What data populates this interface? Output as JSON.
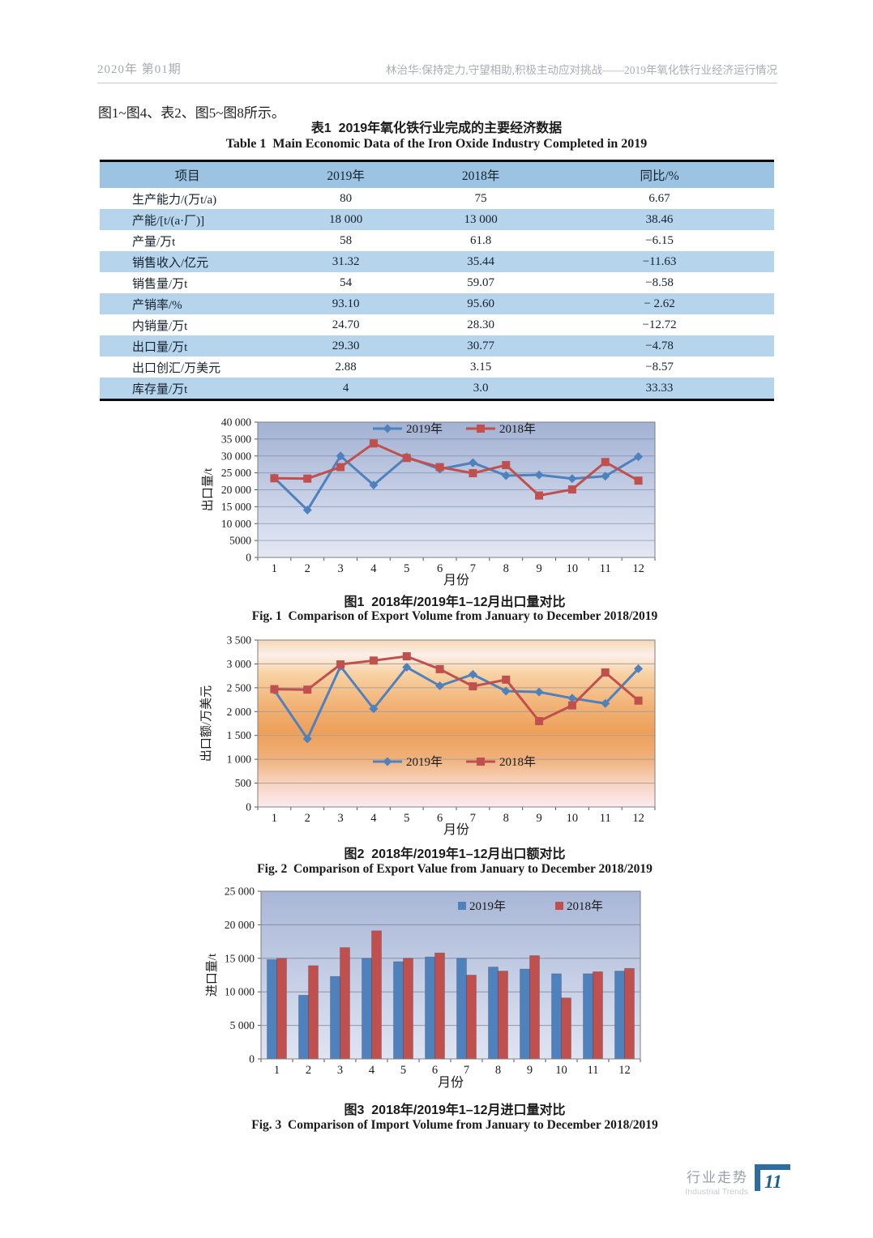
{
  "page": {
    "header": {
      "issue": "2020年 第01期",
      "running_title": "林治华:保持定力,守望相助,积极主动应对挑战——2019年氧化铁行业经济运行情况"
    },
    "intro_text": "图1~图4、表2、图5~图8所示。",
    "footer": {
      "section_zh": "行业走势",
      "section_en": "Industrial Trends",
      "page_number": "11"
    }
  },
  "colors": {
    "series_2019": "#4f81bd",
    "series_2018": "#c0504d",
    "table_header_bg": "#9cc4e2",
    "table_row_alt_bg": "#b6d4ec",
    "footer_accent": "#2e6d9e"
  },
  "table1": {
    "title_zh": "表1  2019年氧化铁行业完成的主要经济数据",
    "title_en": "Table 1  Main Economic Data of the Iron Oxide Industry Completed in 2019",
    "columns": [
      "项目",
      "2019年",
      "2018年",
      "同比/%"
    ],
    "rows": [
      [
        "生产能力/(万t/a)",
        "80",
        "75",
        "6.67"
      ],
      [
        "产能/[t/(a·厂)]",
        "18 000",
        "13 000",
        "38.46"
      ],
      [
        "产量/万t",
        "58",
        "61.8",
        "−6.15"
      ],
      [
        "销售收入/亿元",
        "31.32",
        "35.44",
        "−11.63"
      ],
      [
        "销售量/万t",
        "54",
        "59.07",
        "−8.58"
      ],
      [
        "产销率/%",
        "93.10",
        "95.60",
        "− 2.62"
      ],
      [
        "内销量/万t",
        "24.70",
        "28.30",
        "−12.72"
      ],
      [
        "出口量/万t",
        "29.30",
        "30.77",
        "−4.78"
      ],
      [
        "出口创汇/万美元",
        "2.88",
        "3.15",
        "−8.57"
      ],
      [
        "库存量/万t",
        "4",
        "3.0",
        "33.33"
      ]
    ]
  },
  "figures": [
    {
      "id": "fig1",
      "caption_zh": "图1  2018年/2019年1–12月出口量对比",
      "caption_en": "Fig. 1  Comparison of Export Volume from January to December 2018/2019",
      "chart_data": {
        "type": "line",
        "categories": [
          "1",
          "2",
          "3",
          "4",
          "5",
          "6",
          "7",
          "8",
          "9",
          "10",
          "11",
          "12"
        ],
        "xlabel": "月份",
        "ylabel": "出口量/t",
        "ylim": [
          0,
          40000
        ],
        "ystep": 5000,
        "ytick_labels": [
          "40 000",
          "35 000",
          "30 000",
          "25 000",
          "20 000",
          "15 000",
          "10 000",
          "5000",
          "0"
        ],
        "grid": true,
        "legend_position": "inside-top-center",
        "plot_bg_stops": [
          [
            0,
            "#a3b2d3"
          ],
          [
            0.55,
            "#c7d0e6"
          ],
          [
            1,
            "#e3e8f4"
          ]
        ],
        "series": [
          {
            "name": "2019年",
            "color": "#4f81bd",
            "marker": "diamond",
            "values": [
              23500,
              14000,
              30000,
              21400,
              29700,
              26100,
              28000,
              24200,
              24400,
              23300,
              24000,
              29800
            ]
          },
          {
            "name": "2018年",
            "color": "#c0504d",
            "marker": "square",
            "values": [
              23400,
              23300,
              26700,
              33700,
              29400,
              26700,
              24900,
              27300,
              18300,
              20100,
              28200,
              22700
            ]
          }
        ]
      }
    },
    {
      "id": "fig2",
      "caption_zh": "图2  2018年/2019年1–12月出口额对比",
      "caption_en": "Fig. 2  Comparison of Export Value from January to December 2018/2019",
      "chart_data": {
        "type": "line",
        "categories": [
          "1",
          "2",
          "3",
          "4",
          "5",
          "6",
          "7",
          "8",
          "9",
          "10",
          "11",
          "12"
        ],
        "xlabel": "月份",
        "ylabel": "出口额/万美元",
        "ylim": [
          0,
          3500
        ],
        "ystep": 500,
        "ytick_labels": [
          "3 500",
          "3 000",
          "2 500",
          "2 000",
          "1 500",
          "1 000",
          "500",
          "0"
        ],
        "grid": true,
        "legend_position": "inside-lower-center",
        "plot_bg_stops": [
          [
            0,
            "#f5d9b6"
          ],
          [
            0.09,
            "#fcefe9"
          ],
          [
            0.2,
            "#f8d2a4"
          ],
          [
            0.38,
            "#f2b478"
          ],
          [
            0.55,
            "#eda05a"
          ],
          [
            0.7,
            "#f0af77"
          ],
          [
            0.84,
            "#f6d0b8"
          ],
          [
            1,
            "#fcebf2"
          ]
        ],
        "series": [
          {
            "name": "2019年",
            "color": "#4f81bd",
            "marker": "diamond",
            "values": [
              2450,
              1430,
              2950,
              2060,
              2930,
              2540,
              2780,
              2430,
              2410,
              2280,
              2170,
              2900
            ]
          },
          {
            "name": "2018年",
            "color": "#c0504d",
            "marker": "square",
            "values": [
              2470,
              2460,
              2990,
              3070,
              3160,
              2890,
              2530,
              2670,
              1800,
              2130,
              2820,
              2230
            ]
          }
        ]
      }
    },
    {
      "id": "fig3",
      "caption_zh": "图3  2018年/2019年1–12月进口量对比",
      "caption_en": "Fig. 3  Comparison of Import Volume from January to December 2018/2019",
      "chart_data": {
        "type": "bar",
        "categories": [
          "1",
          "2",
          "3",
          "4",
          "5",
          "6",
          "7",
          "8",
          "9",
          "10",
          "11",
          "12"
        ],
        "xlabel": "月份",
        "ylabel": "进口量/t",
        "ylim": [
          0,
          25000
        ],
        "ystep": 5000,
        "ytick_labels": [
          "25 000",
          "20 000",
          "15 000",
          "10 000",
          "5 000",
          "0"
        ],
        "grid": true,
        "legend_position": "inside-top-center",
        "plot_bg_stops": [
          [
            0,
            "#a9b7d7"
          ],
          [
            0.6,
            "#c9d2e7"
          ],
          [
            1,
            "#dfe4f1"
          ]
        ],
        "series": [
          {
            "name": "2019年",
            "color": "#4f81bd",
            "values": [
              14800,
              9500,
              12300,
              15000,
              14500,
              15200,
              15000,
              13700,
              13400,
              12700,
              12700,
              13100
            ]
          },
          {
            "name": "2018年",
            "color": "#c0504d",
            "values": [
              15000,
              13900,
              16600,
              19100,
              15000,
              15800,
              12500,
              13100,
              15400,
              9100,
              13000,
              13500
            ]
          }
        ]
      }
    }
  ]
}
